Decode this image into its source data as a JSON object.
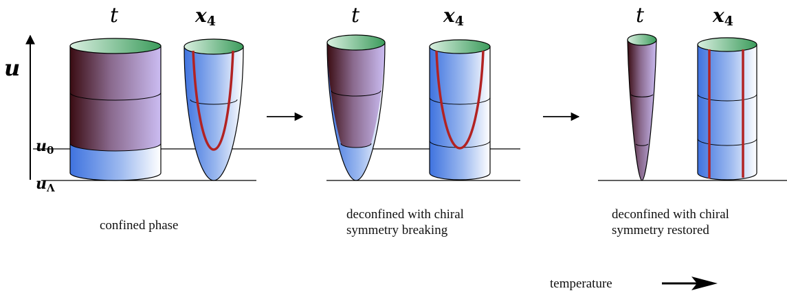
{
  "axis": {
    "main": "u",
    "u0_base": "u",
    "u0_sub": "0",
    "uL_base": "u",
    "uL_sub": "Λ"
  },
  "labels": {
    "t": "t",
    "x4_base": "x",
    "x4_sub": "4"
  },
  "captions": {
    "confined": "confined phase",
    "broken_line1": "deconfined with chiral",
    "broken_line2": "symmetry breaking",
    "restored_line1": "deconfined with chiral",
    "restored_line2": "symmetry restored",
    "temperature": "temperature"
  },
  "colors": {
    "purple_dark": "#3a0c12",
    "purple_light": "#c6b8ef",
    "blue": "#3f73df",
    "green_cap": "#3c9c5c",
    "red_brane": "#b22222"
  }
}
